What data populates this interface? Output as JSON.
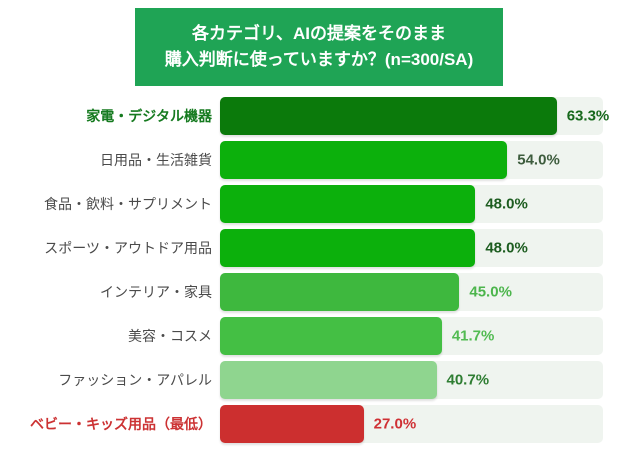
{
  "header": {
    "title_line1": "各カテゴリ、AIの提案をそのまま",
    "title_line2": "購入判断に使っていますか？(n=300/SA)",
    "bg_color": "#1fa455",
    "text_color": "#ffffff"
  },
  "chart_data": {
    "type": "bar",
    "orientation": "horizontal",
    "title": "各カテゴリ、AIの提案をそのまま購入判断に使っていますか？(n=300/SA)",
    "sample_note": "n=300/SA",
    "categories": [
      "家電・デジタル機器",
      "日用品・生活雑貨",
      "食品・飲料・サプリメント",
      "スポーツ・アウトドア用品",
      "インテリア・家具",
      "美容・コスメ",
      "ファッション・アパレル",
      "ベビー・キッズ用品（最低）"
    ],
    "values": [
      63.3,
      54.0,
      48.0,
      48.0,
      45.0,
      41.7,
      40.7,
      27.0
    ],
    "value_labels": [
      "63.3%",
      "54.0%",
      "48.0%",
      "48.0%",
      "45.0%",
      "41.7%",
      "40.7%",
      "27.0%"
    ],
    "xlim": [
      0,
      72
    ],
    "grid": false,
    "legend": false,
    "track_color": "#eff4ef",
    "bar_colors": [
      "#0b7a0b",
      "#0cb00c",
      "#0cb00c",
      "#0cb00c",
      "#3eb83e",
      "#44bf44",
      "#8fd58f",
      "#cc2f2f"
    ],
    "value_colors": [
      "#17691c",
      "#3d5c3d",
      "#1c5c1f",
      "#1c5c1f",
      "#4cb54c",
      "#52bb52",
      "#2e7d32",
      "#cf3034"
    ],
    "label_colors": [
      "#157a1f",
      "#4a4a4a",
      "#4a4a4a",
      "#4a4a4a",
      "#4a4a4a",
      "#4a4a4a",
      "#4a4a4a",
      "#cc3233"
    ],
    "label_bold": [
      true,
      false,
      false,
      false,
      false,
      false,
      false,
      true
    ]
  }
}
